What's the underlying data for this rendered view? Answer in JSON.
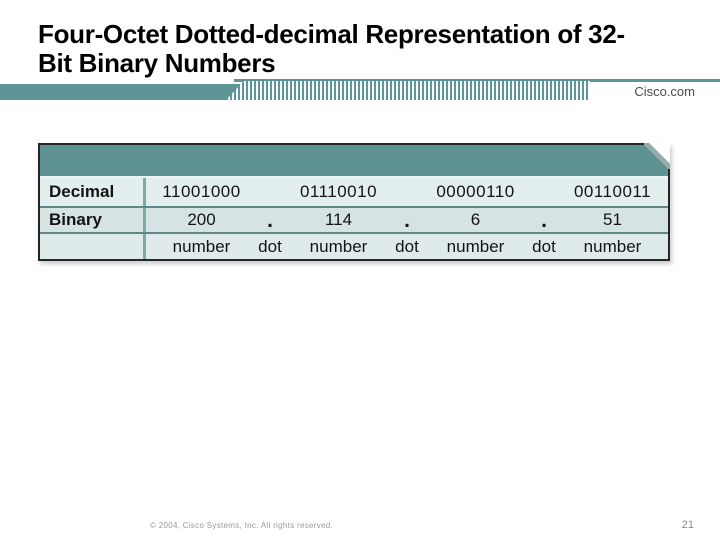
{
  "slide": {
    "title_line1": "Four-Octet Dotted-decimal Representation of 32-",
    "title_line2": "Bit Binary Numbers",
    "brand": "Cisco.com",
    "footer": "© 2004, Cisco Systems, Inc. All rights reserved.",
    "page_number": "21"
  },
  "table": {
    "row_labels": [
      "Decimal",
      "Binary",
      ""
    ],
    "octets_binary": [
      "11001000",
      "01110010",
      "00000110",
      "00110011"
    ],
    "octets_decimal": [
      "200",
      "114",
      "6",
      "51"
    ],
    "dot": ".",
    "caption_number": "number",
    "caption_dot": "dot"
  },
  "colors": {
    "teal_banner": "#5E9697",
    "table_header_band": "#5F9293",
    "row_light": "#E3EEEE",
    "row_mid": "#D5E3E3",
    "row_caption": "#DFEAEA",
    "border_dark": "#262626",
    "row_separator": "#5E8787",
    "label_divider": "#7FA9A9",
    "footer_gray": "#9A9A9A",
    "brand_gray": "#4C4C4C"
  }
}
